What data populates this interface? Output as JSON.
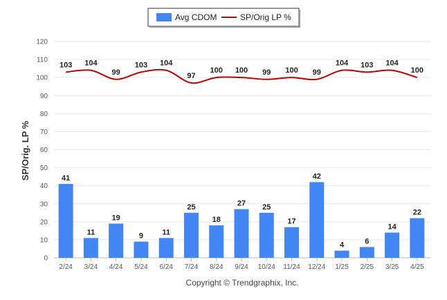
{
  "chart_data": {
    "type": "bar",
    "categories": [
      "2/24",
      "3/24",
      "4/24",
      "5/24",
      "6/24",
      "7/24",
      "8/24",
      "9/24",
      "10/24",
      "11/24",
      "12/24",
      "1/25",
      "2/25",
      "3/25",
      "4/25"
    ],
    "series": [
      {
        "name": "Avg CDOM",
        "type": "bar",
        "color": "#4285f4",
        "values": [
          41,
          11,
          19,
          9,
          11,
          25,
          18,
          27,
          25,
          17,
          42,
          4,
          6,
          14,
          22
        ]
      },
      {
        "name": "SP/Orig LP %",
        "type": "line",
        "color": "#c00000",
        "values": [
          103,
          104,
          99,
          103,
          104,
          97,
          100,
          100,
          99,
          100,
          99,
          104,
          103,
          104,
          100
        ]
      }
    ],
    "ylabel": "SP/Orig. LP %",
    "xlabel": "",
    "ylim": [
      0,
      120
    ],
    "yticks": [
      0,
      10,
      20,
      30,
      40,
      50,
      60,
      70,
      80,
      90,
      100,
      110,
      120
    ],
    "grid": true,
    "legend_position": "top-center"
  },
  "footer": {
    "copyright": "Copyright © Trendgraphix, Inc."
  }
}
